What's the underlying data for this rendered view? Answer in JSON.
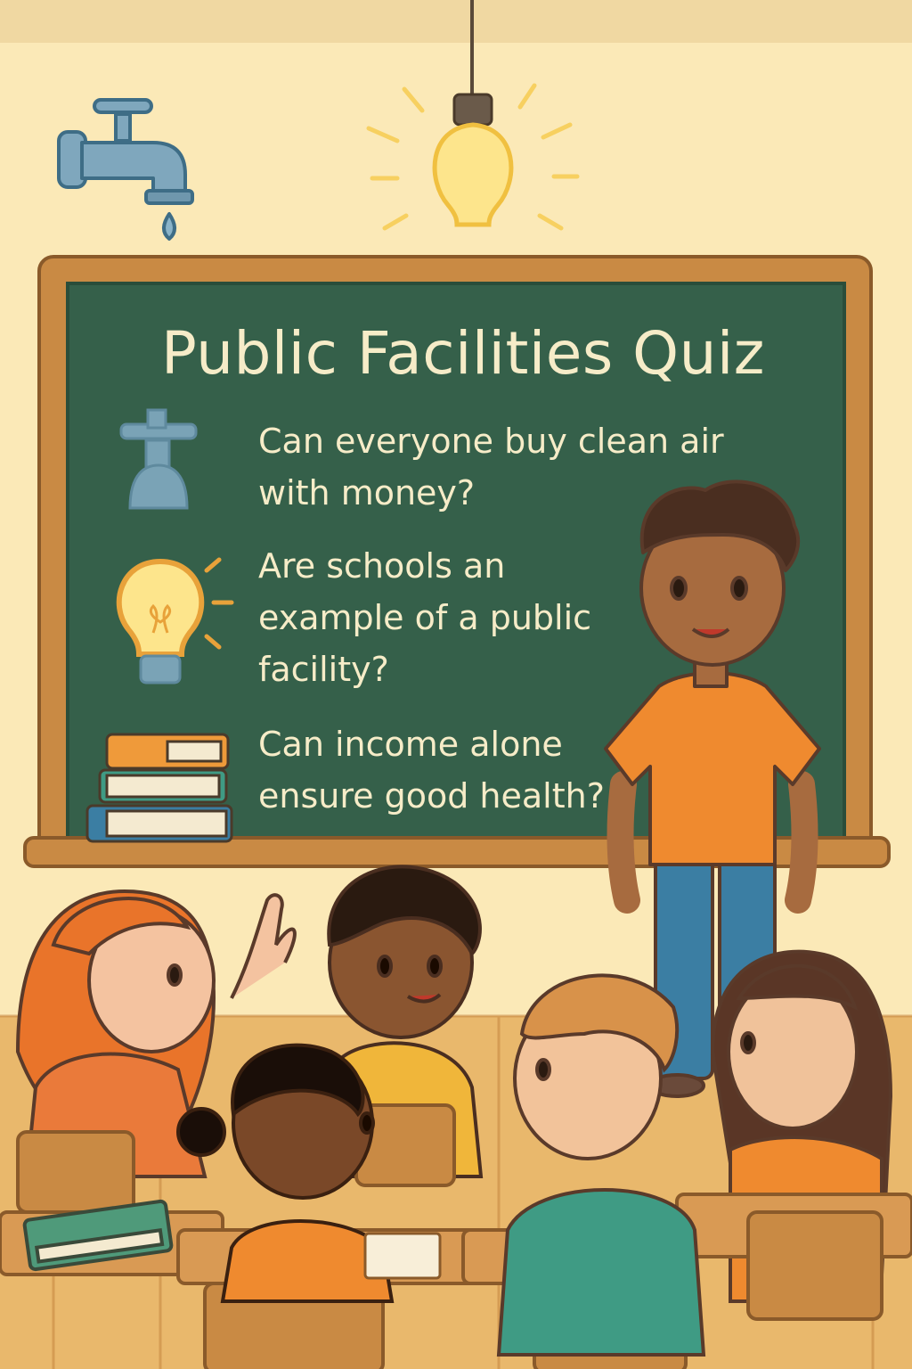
{
  "board": {
    "title": "Public Facilities Quiz",
    "questions": [
      {
        "text": "Can everyone buy clean air with money?",
        "icon": "tap-icon"
      },
      {
        "text": "Are schools an example of a public facility?",
        "icon": "lightbulb-icon"
      },
      {
        "text": "Can income alone ensure good health?",
        "icon": "books-icon"
      }
    ]
  },
  "colors": {
    "wall": "#fbe9b7",
    "chalkboard": "#35604a",
    "board_frame": "#c98a44",
    "chalk_text": "#f6ecc8",
    "teacher_shirt": "#ef8a2f",
    "teacher_pants": "#3b7ea3"
  }
}
